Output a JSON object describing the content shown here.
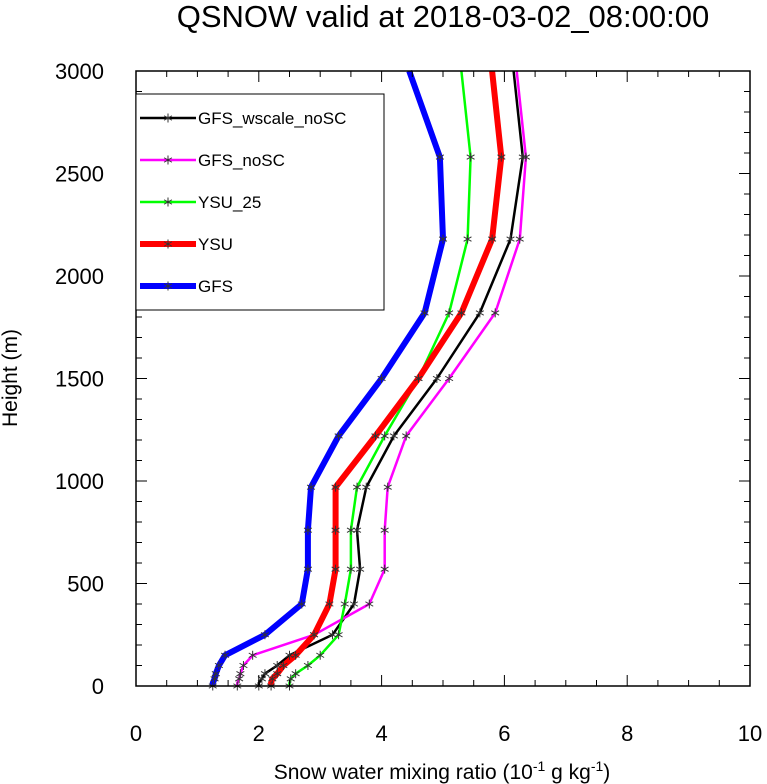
{
  "chart_data": {
    "type": "line",
    "title": "QSNOW valid at 2018-03-02_08:00:00",
    "xlabel": "Snow water mixing ratio (10",
    "xlabel_exp1": "-1",
    "xlabel_mid": " g kg",
    "xlabel_exp2": "-1",
    "xlabel_end": ")",
    "ylabel": "Height (m)",
    "xlim": [
      0,
      10
    ],
    "ylim": [
      0,
      3000
    ],
    "x_ticks": [
      "0",
      "2",
      "4",
      "6",
      "8",
      "10"
    ],
    "y_ticks": [
      "0",
      "500",
      "1000",
      "1500",
      "2000",
      "2500",
      "3000"
    ],
    "legend_position": "top-left",
    "heights": [
      0,
      15,
      35,
      60,
      100,
      150,
      250,
      400,
      570,
      760,
      970,
      1220,
      1500,
      1820,
      2180,
      2580,
      3000
    ],
    "series": [
      {
        "name": "GFS_wscale_noSC",
        "color": "#000000",
        "thick": false,
        "values": [
          2.0,
          2.0,
          2.05,
          2.1,
          2.3,
          2.5,
          3.2,
          3.55,
          3.65,
          3.6,
          3.75,
          4.2,
          4.9,
          5.6,
          6.1,
          6.3,
          6.15
        ]
      },
      {
        "name": "GFS_noSC",
        "color": "#ff00ff",
        "thick": false,
        "values": [
          1.65,
          1.65,
          1.68,
          1.7,
          1.75,
          1.9,
          2.9,
          3.8,
          4.05,
          4.05,
          4.1,
          4.4,
          5.1,
          5.85,
          6.25,
          6.35,
          6.2
        ]
      },
      {
        "name": "YSU_25",
        "color": "#00ff00",
        "thick": false,
        "values": [
          2.5,
          2.5,
          2.52,
          2.6,
          2.8,
          3.0,
          3.3,
          3.4,
          3.5,
          3.5,
          3.6,
          4.05,
          4.6,
          5.1,
          5.4,
          5.45,
          5.3
        ]
      },
      {
        "name": "YSU",
        "color": "#ff0000",
        "thick": true,
        "values": [
          2.2,
          2.2,
          2.22,
          2.3,
          2.4,
          2.6,
          2.9,
          3.15,
          3.25,
          3.25,
          3.25,
          3.9,
          4.6,
          5.3,
          5.8,
          5.95,
          5.8
        ]
      },
      {
        "name": "GFS",
        "color": "#0000ff",
        "thick": true,
        "values": [
          1.25,
          1.25,
          1.28,
          1.3,
          1.35,
          1.45,
          2.1,
          2.7,
          2.8,
          2.8,
          2.85,
          3.3,
          4.0,
          4.7,
          5.0,
          4.95,
          4.45
        ]
      }
    ]
  }
}
